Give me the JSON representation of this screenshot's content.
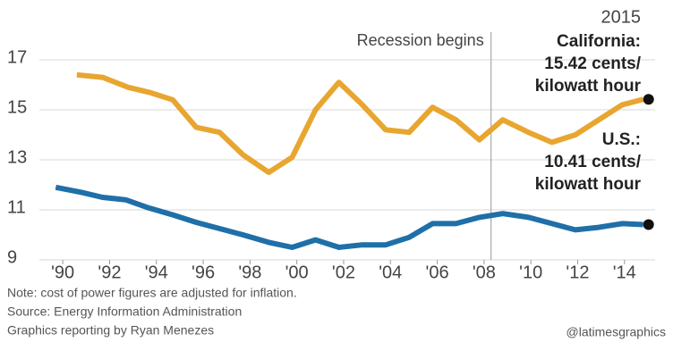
{
  "chart_data": {
    "type": "line",
    "xlim": [
      1989,
      2015.5
    ],
    "ylim": [
      9,
      19
    ],
    "yticks": [
      9,
      11,
      13,
      15,
      17
    ],
    "xticks": [
      {
        "value": 1990,
        "label": "'90"
      },
      {
        "value": 1992,
        "label": "'92"
      },
      {
        "value": 1994,
        "label": "'94"
      },
      {
        "value": 1996,
        "label": "'96"
      },
      {
        "value": 1998,
        "label": "'98"
      },
      {
        "value": 2000,
        "label": "'00"
      },
      {
        "value": 2002,
        "label": "'02"
      },
      {
        "value": 2004,
        "label": "'04"
      },
      {
        "value": 2006,
        "label": "'06"
      },
      {
        "value": 2008,
        "label": "'08"
      },
      {
        "value": 2010,
        "label": "'10"
      },
      {
        "value": 2012,
        "label": "'12"
      },
      {
        "value": 2014,
        "label": "'14"
      }
    ],
    "grid": true,
    "series": [
      {
        "name": "California",
        "color": "#e8a630",
        "x": [
          1990.6,
          1991.7,
          1992.8,
          1993.7,
          1994.7,
          1995.7,
          1996.7,
          1997.7,
          1998.8,
          1999.8,
          2000.8,
          2001.8,
          2002.8,
          2003.8,
          2004.8,
          2005.8,
          2006.8,
          2007.8,
          2008.8,
          2009.9,
          2010.9,
          2011.9,
          2012.9,
          2013.9,
          2014.8
        ],
        "values": [
          16.4,
          16.3,
          15.9,
          15.7,
          15.4,
          14.3,
          14.1,
          13.2,
          12.5,
          13.1,
          15.0,
          16.1,
          15.2,
          14.2,
          14.1,
          15.1,
          14.6,
          13.8,
          14.6,
          14.1,
          13.7,
          14.0,
          14.6,
          15.2,
          15.42
        ]
      },
      {
        "name": "U.S.",
        "color": "#1f6fa8",
        "x": [
          1989.7,
          1990.8,
          1991.7,
          1992.7,
          1993.6,
          1994.7,
          1995.7,
          1996.7,
          1997.7,
          1998.8,
          1999.8,
          2000.8,
          2001.8,
          2002.8,
          2003.8,
          2004.8,
          2005.8,
          2006.8,
          2007.8,
          2008.8,
          2009.9,
          2010.9,
          2011.9,
          2012.9,
          2013.9,
          2014.8
        ],
        "values": [
          11.9,
          11.7,
          11.5,
          11.4,
          11.1,
          10.8,
          10.5,
          10.25,
          10.0,
          9.7,
          9.5,
          9.8,
          9.5,
          9.6,
          9.6,
          9.9,
          10.45,
          10.45,
          10.7,
          10.85,
          10.7,
          10.45,
          10.2,
          10.3,
          10.45,
          10.41
        ]
      }
    ],
    "recession": {
      "x": 2008.3,
      "label": "Recession begins"
    },
    "year_label": "2015",
    "end_labels": [
      {
        "lines": [
          "California:",
          "15.42 cents/",
          "kilowatt hour"
        ]
      },
      {
        "lines": [
          "U.S.:",
          "10.41 cents/",
          "kilowatt hour"
        ]
      }
    ],
    "notes": [
      "Note: cost of power figures are adjusted for inflation.",
      "Source: Energy Information Administration",
      "Graphics reporting by Ryan Menezes"
    ],
    "credit": "@latimesgraphics"
  }
}
